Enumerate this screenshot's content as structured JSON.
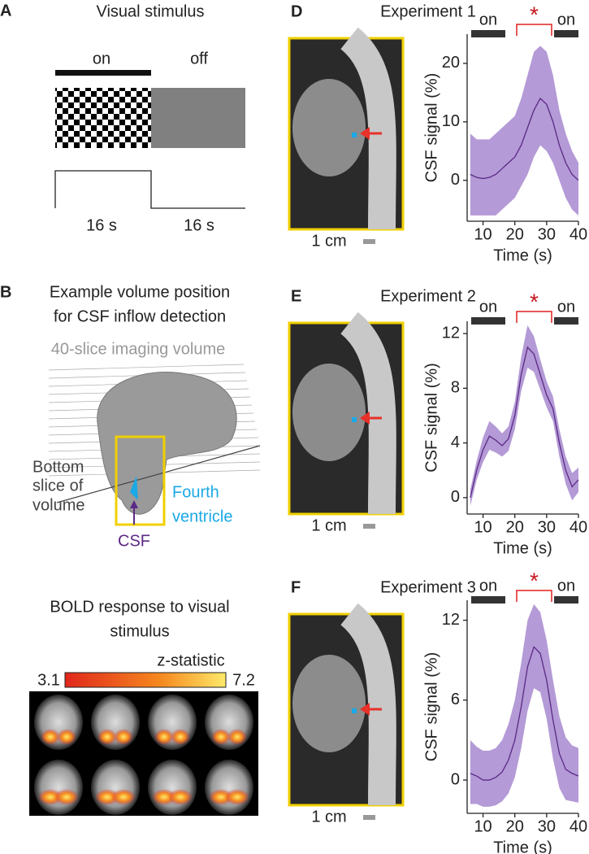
{
  "panels": {
    "a": {
      "label": "A",
      "title": "Visual stimulus",
      "on": "on",
      "off": "off",
      "duration_on": "16 s",
      "duration_off": "16 s"
    },
    "b": {
      "label": "B",
      "title_lines": [
        "Example volume position",
        "for CSF inflow detection"
      ],
      "volume": "40-slice imaging volume",
      "bottom_lines": [
        "Bottom",
        "slice of",
        "volume"
      ],
      "ventricle_lines": [
        "Fourth",
        "ventricle"
      ],
      "csf": "CSF",
      "bold_lines": [
        "BOLD response to visual",
        "stimulus"
      ],
      "zstat": "z-statistic",
      "zmin": "3.1",
      "zmax": "7.2"
    }
  },
  "chart_data": [
    {
      "type": "line",
      "label": "D",
      "title": "Experiment 1",
      "scale": "1 cm",
      "on_labels": [
        "on",
        "on"
      ],
      "significance": "*",
      "xlabel": "Time (s)",
      "ylabel": "CSF signal (%)",
      "x": [
        6,
        8,
        10,
        12,
        14,
        16,
        18,
        20,
        22,
        24,
        26,
        28,
        30,
        32,
        34,
        36,
        38,
        40
      ],
      "series": [
        {
          "color": "#5b2a86",
          "band_color": "#b49ad6",
          "values": [
            1,
            0.5,
            0.3,
            0.5,
            1,
            2,
            3,
            4,
            6,
            9,
            12,
            14,
            13,
            10,
            6,
            3,
            1,
            0
          ],
          "upper": [
            8,
            7,
            7,
            7,
            8,
            9,
            10,
            11,
            14,
            18,
            22,
            23,
            22,
            18,
            12,
            8,
            5,
            3
          ],
          "lower": [
            -6,
            -6,
            -6,
            -6,
            -6,
            -5,
            -4,
            -3,
            -1,
            1,
            4,
            6,
            5,
            3,
            0,
            -3,
            -5,
            -6
          ]
        }
      ],
      "xlim": [
        5,
        40
      ],
      "ylim": [
        -7,
        25
      ],
      "xticks": [
        10,
        20,
        30,
        40
      ],
      "yticks": [
        0,
        10,
        20
      ]
    },
    {
      "type": "line",
      "label": "E",
      "title": "Experiment 2",
      "scale": "1 cm",
      "on_labels": [
        "on",
        "on"
      ],
      "significance": "*",
      "xlabel": "Time (s)",
      "ylabel": "CSF signal (%)",
      "x": [
        6,
        8,
        10,
        12,
        14,
        16,
        18,
        20,
        22,
        24,
        26,
        28,
        30,
        32,
        34,
        36,
        38,
        40
      ],
      "series": [
        {
          "color": "#5b2a86",
          "band_color": "#b49ad6",
          "values": [
            0,
            2,
            3.5,
            4.5,
            4.2,
            3.8,
            4.3,
            6,
            9,
            11,
            10.5,
            9,
            7.5,
            6.5,
            4,
            2,
            0.8,
            1.3
          ],
          "upper": [
            0.6,
            2.7,
            4.4,
            5.6,
            5.2,
            4.7,
            5.2,
            7,
            10.3,
            12.6,
            11.8,
            10.1,
            8.5,
            7.4,
            5,
            3,
            1.8,
            2.2
          ],
          "lower": [
            -0.6,
            1.3,
            2.6,
            3.5,
            3.3,
            3,
            3.4,
            5,
            7.8,
            9.5,
            9.2,
            7.9,
            6.6,
            5.6,
            3,
            1,
            -0.2,
            0.4
          ]
        }
      ],
      "xlim": [
        5,
        40
      ],
      "ylim": [
        -1.2,
        12.9
      ],
      "xticks": [
        10,
        20,
        30,
        40
      ],
      "yticks": [
        0,
        4,
        8,
        12
      ]
    },
    {
      "type": "line",
      "label": "F",
      "title": "Experiment 3",
      "scale": "1 cm",
      "on_labels": [
        "on",
        "on"
      ],
      "significance": "*",
      "xlabel": "Time (s)",
      "ylabel": "CSF signal (%)",
      "x": [
        6,
        8,
        10,
        12,
        14,
        16,
        18,
        20,
        22,
        24,
        26,
        28,
        30,
        32,
        34,
        36,
        38,
        40
      ],
      "series": [
        {
          "color": "#5b2a86",
          "band_color": "#b49ad6",
          "values": [
            0.5,
            0.3,
            0,
            0,
            0.2,
            0.6,
            1.5,
            3,
            5.5,
            8.5,
            10,
            9.5,
            7.5,
            4.5,
            2,
            0.8,
            0.5,
            0.3
          ],
          "upper": [
            3,
            2.5,
            2.2,
            2.2,
            2.4,
            3,
            4.2,
            6,
            8.8,
            12,
            13.2,
            12.6,
            10.5,
            7.5,
            4.8,
            3.2,
            2.6,
            2.4
          ],
          "lower": [
            -1.8,
            -1.8,
            -2,
            -2,
            -1.9,
            -1.6,
            -1,
            0.2,
            2.4,
            5.2,
            6.9,
            6.6,
            4.6,
            1.6,
            -0.6,
            -1.5,
            -1.6,
            -1.7
          ]
        }
      ],
      "xlim": [
        5,
        40
      ],
      "ylim": [
        -2.5,
        13.5
      ],
      "xticks": [
        10,
        20,
        30,
        40
      ],
      "yticks": [
        0,
        6,
        12
      ]
    }
  ]
}
